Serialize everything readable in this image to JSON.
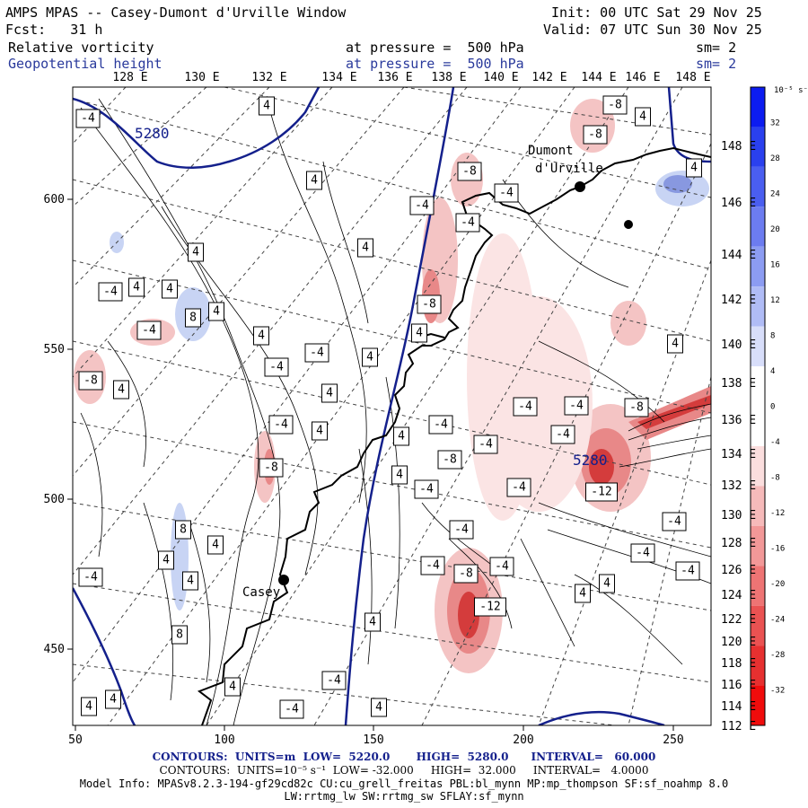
{
  "header": {
    "title": "AMPS MPAS -- Casey-Dumont d'Urville Window",
    "init": "Init: 00 UTC Sat 29 Nov 25",
    "fcst": "Fcst:   31 h",
    "valid": "Valid: 07 UTC Sun 30 Nov 25",
    "field1": "Relative vorticity",
    "field1_level": "at pressure =  500 hPa",
    "field1_sm": "sm= 2",
    "field2": "Geopotential height",
    "field2_level": "at pressure =  500 hPa",
    "field2_sm": "sm= 2"
  },
  "map": {
    "lon_top": [
      "128 E",
      "130 E",
      "132 E",
      "134 E",
      "136 E",
      "138 E",
      "140 E",
      "142 E",
      "144 E",
      "146 E",
      "148 E"
    ],
    "lat_right": [
      "148 E",
      "146 E",
      "144 E",
      "142 E",
      "140 E",
      "138 E",
      "136 E",
      "134 E",
      "132 E",
      "130 E",
      "128 E",
      "126 E",
      "124 E",
      "122 E",
      "120 E",
      "118 E",
      "116 E",
      "114 E",
      "112 E"
    ],
    "x_ticks": [
      "50",
      "100",
      "150",
      "200",
      "250"
    ],
    "y_ticks": [
      "600",
      "550",
      "500",
      "450"
    ],
    "place_casey": "Casey",
    "place_dumont": "Dumont\nd'Urville",
    "height_label": "5280",
    "height_label2": "5280",
    "vort_labels": [
      "-4",
      "4",
      "-8",
      "8",
      "-12"
    ],
    "colors": {
      "height_contour": "#14208c",
      "coast": "#000000",
      "pos_fill": "#f4c4c4",
      "pos_fill2": "#e88888",
      "pos_fill3": "#d43c3c",
      "neg_fill": "#c8d4f4",
      "neg_fill2": "#8898e0"
    }
  },
  "colorbar": {
    "unit": "10⁻⁵ s⁻¹",
    "labels": [
      "32",
      "28",
      "24",
      "20",
      "16",
      "12",
      "8",
      "4",
      "0",
      "-4",
      "-8",
      "-12",
      "-16",
      "-20",
      "-24",
      "-28",
      "-32"
    ],
    "colors": [
      "#0c1cf0",
      "#2a40ee",
      "#4a5ef0",
      "#6c7cf0",
      "#8c9cf2",
      "#b0bcf6",
      "#d8defa",
      "#ffffff",
      "#ffffff",
      "#fbdede",
      "#f6baba",
      "#f29898",
      "#ee7474",
      "#ea5252",
      "#e63030",
      "#f00c0c"
    ]
  },
  "footer": {
    "line1": "CONTOURS:  UNITS=m  LOW=  5220.0       HIGH=  5280.0      INTERVAL=   60.000",
    "line2": "CONTOURS:  UNITS=10⁻⁵ s⁻¹  LOW= -32.000     HIGH=  32.000     INTERVAL=   4.0000",
    "line3": "Model Info: MPASv8.2.3-194-gf29cd82c CU:cu_grell_freitas PBL:bl_mynn MP:mp_thompson SF:sf_noahmp 8.0",
    "line4": "LW:rrtmg_lw SW:rrtmg_sw SFLAY:sf_mynn"
  }
}
